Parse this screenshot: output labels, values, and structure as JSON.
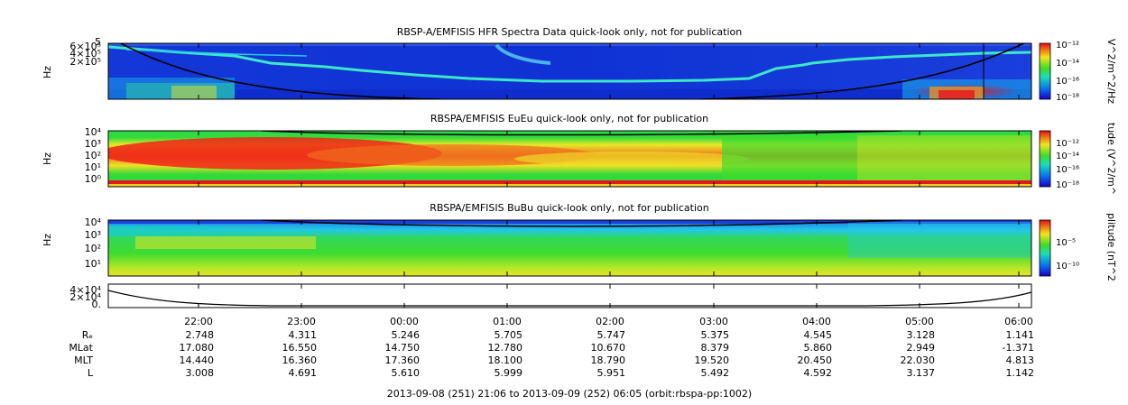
{
  "panels": [
    {
      "title": "RBSP-A/EMFISIS  HFR Spectra Data quick-look only, not for publication",
      "ylabel": "Hz",
      "yticks": [
        "6×10⁵",
        "4×10⁵",
        "2×10⁵"
      ],
      "ytop_exponent": "5",
      "colorbar_label": "V^2/m^2/Hz",
      "colorbar_ticks": [
        "10⁻¹²",
        "10⁻¹⁴",
        "10⁻¹⁶",
        "10⁻¹⁸"
      ]
    },
    {
      "title": "RBSPA/EMFISIS  EuEu quick-look only, not for publication",
      "ylabel": "Hz",
      "yticks": [
        "10⁴",
        "10³",
        "10²",
        "10¹",
        "10⁰"
      ],
      "colorbar_label": "tude (V^2/m^",
      "colorbar_ticks": [
        "10⁻¹²",
        "10⁻¹⁴",
        "10⁻¹⁶",
        "10⁻¹⁸"
      ]
    },
    {
      "title": "RBSPA/EMFISIS  BuBu quick-look only, not for publication",
      "ylabel": "Hz",
      "yticks": [
        "10⁴",
        "10³",
        "10²",
        "10¹"
      ],
      "colorbar_label": "plitude (nT^2",
      "colorbar_ticks": [
        "10⁻⁵",
        "10⁻¹⁰"
      ]
    },
    {
      "title": "",
      "ylabel": "",
      "yticks": [
        "4×10⁴",
        "2×10⁴",
        "0."
      ]
    }
  ],
  "chart_data": {
    "type": "heatmap",
    "x_ticks": [
      "22:00",
      "23:00",
      "00:00",
      "01:00",
      "02:00",
      "03:00",
      "04:00",
      "05:00",
      "06:00"
    ],
    "ephemeris": {
      "labels": [
        "Rₑ",
        "MLat",
        "MLT",
        "L"
      ],
      "rows": [
        [
          "2.748",
          "4.311",
          "5.246",
          "5.705",
          "5.747",
          "5.375",
          "4.545",
          "3.128",
          "1.141"
        ],
        [
          "17.080",
          "16.550",
          "14.750",
          "12.780",
          "10.670",
          "8.379",
          "5.860",
          "2.949",
          "-1.371"
        ],
        [
          "14.440",
          "16.360",
          "17.360",
          "18.100",
          "18.790",
          "19.520",
          "20.450",
          "22.030",
          "4.813"
        ],
        [
          "3.008",
          "4.691",
          "5.610",
          "5.999",
          "5.951",
          "5.492",
          "4.592",
          "3.137",
          "1.142"
        ]
      ]
    },
    "x_range": [
      "2013-09-08 21:06",
      "2013-09-09 06:05"
    ],
    "caption": "2013-09-08 (251) 21:06 to 2013-09-09 (252) 06:05 (orbit:rbspa-pp:1002)"
  },
  "colors": {
    "spectro_blue": "#0a2dd6",
    "spectro_lightblue": "#19b4f0",
    "spectro_green": "#22dd33",
    "spectro_yellow": "#f0ee22",
    "spectro_red": "#e8141e"
  }
}
